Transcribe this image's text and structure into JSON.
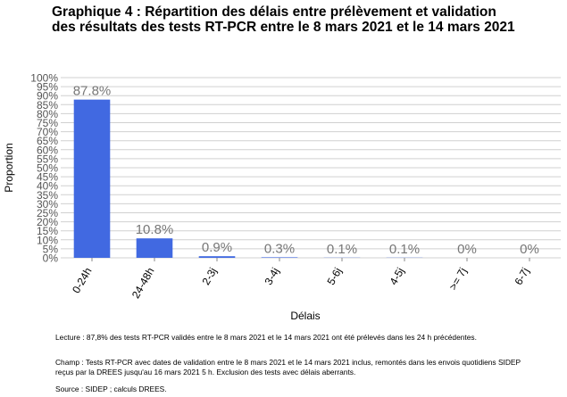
{
  "title_lines": [
    "Graphique 4 : Répartition des délais entre prélèvement et validation",
    "des résultats des tests RT-PCR entre le 8 mars 2021 et le 14 mars 2021"
  ],
  "notes": {
    "lecture": "Lecture : 87,8% des tests RT-PCR validés entre le 8 mars 2021 et le 14 mars 2021 ont été prélevés dans les 24 h précédentes.",
    "champ_1": "Champ : Tests RT-PCR avec dates de validation entre le 8 mars 2021 et le 14 mars 2021 inclus, remontés dans les envois quotidiens SIDEP",
    "champ_2": "reçus par la DREES jusqu'au 16 mars 2021 5 h. Exclusion des tests avec délais aberrants.",
    "source": "Source : SIDEP ; calculs DREES."
  },
  "colors": {
    "bar": "#4169e1",
    "grid": "#d0d0d0",
    "tick_text": "#555555",
    "data_label": "#777777"
  },
  "chart_data": {
    "type": "bar",
    "title": "Graphique 4 : Répartition des délais entre prélèvement et validation des résultats des tests RT-PCR entre le 8 mars 2021 et le 14 mars 2021",
    "xlabel": "Délais",
    "ylabel": "Proportion",
    "categories": [
      "0-24h",
      "24-48h",
      "2-3j",
      "3-4j",
      "5-6j",
      "4-5j",
      ">= 7j",
      "6-7j"
    ],
    "values": [
      87.8,
      10.8,
      0.9,
      0.3,
      0.1,
      0.1,
      0,
      0
    ],
    "data_labels": [
      "87.8%",
      "10.8%",
      "0.9%",
      "0.3%",
      "0.1%",
      "0.1%",
      "0%",
      "0%"
    ],
    "ylim": [
      0,
      100
    ],
    "yticks": [
      0,
      5,
      10,
      15,
      20,
      25,
      30,
      35,
      40,
      45,
      50,
      55,
      60,
      65,
      70,
      75,
      80,
      85,
      90,
      95,
      100
    ],
    "ytick_labels": [
      "0%",
      "5%",
      "10%",
      "15%",
      "20%",
      "25%",
      "30%",
      "35%",
      "40%",
      "45%",
      "50%",
      "55%",
      "60%",
      "65%",
      "70%",
      "75%",
      "80%",
      "85%",
      "90%",
      "95%",
      "100%"
    ],
    "grid": true,
    "legend": "none"
  }
}
